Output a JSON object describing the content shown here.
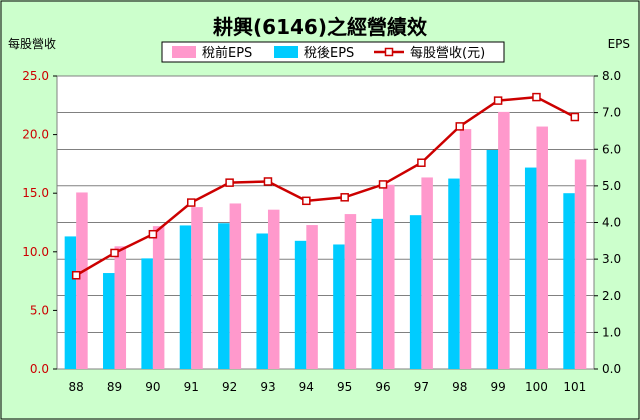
{
  "chart_data": {
    "type": "bar",
    "title": "耕興(6146)之經營績效",
    "ylabel_left": "每股營收",
    "ylabel_right": "EPS",
    "categories": [
      "88",
      "89",
      "90",
      "91",
      "92",
      "93",
      "94",
      "95",
      "96",
      "97",
      "98",
      "99",
      "100",
      "101"
    ],
    "left_axis": {
      "ylim": [
        0,
        25
      ],
      "ticks": [
        "0.0",
        "5.0",
        "10.0",
        "15.0",
        "20.0",
        "25.0"
      ],
      "color": "#cc0000"
    },
    "right_axis": {
      "ylim": [
        0,
        8
      ],
      "ticks": [
        "0.0",
        "1.0",
        "2.0",
        "3.0",
        "4.0",
        "5.0",
        "6.0",
        "7.0",
        "8.0"
      ],
      "color": "#000000"
    },
    "grid": true,
    "legend_position": "top",
    "series": [
      {
        "name": "稅前EPS",
        "type": "bar",
        "axis": "right",
        "color": "#ff99cc",
        "values": [
          4.82,
          3.35,
          3.9,
          4.42,
          4.52,
          4.35,
          3.93,
          4.23,
          5.03,
          5.23,
          6.55,
          7.02,
          6.62,
          5.72
        ]
      },
      {
        "name": "稅後EPS",
        "type": "bar",
        "axis": "right",
        "color": "#00ccff",
        "values": [
          3.62,
          2.62,
          3.02,
          3.92,
          3.98,
          3.7,
          3.5,
          3.4,
          4.1,
          4.2,
          5.2,
          5.98,
          5.5,
          4.8
        ]
      },
      {
        "name": "每股營收(元)",
        "type": "line",
        "axis": "left",
        "color": "#cc0000",
        "values": [
          8.0,
          9.9,
          11.5,
          14.2,
          15.9,
          16.0,
          14.35,
          14.65,
          15.75,
          17.6,
          20.7,
          22.9,
          23.2,
          21.5
        ]
      }
    ]
  }
}
